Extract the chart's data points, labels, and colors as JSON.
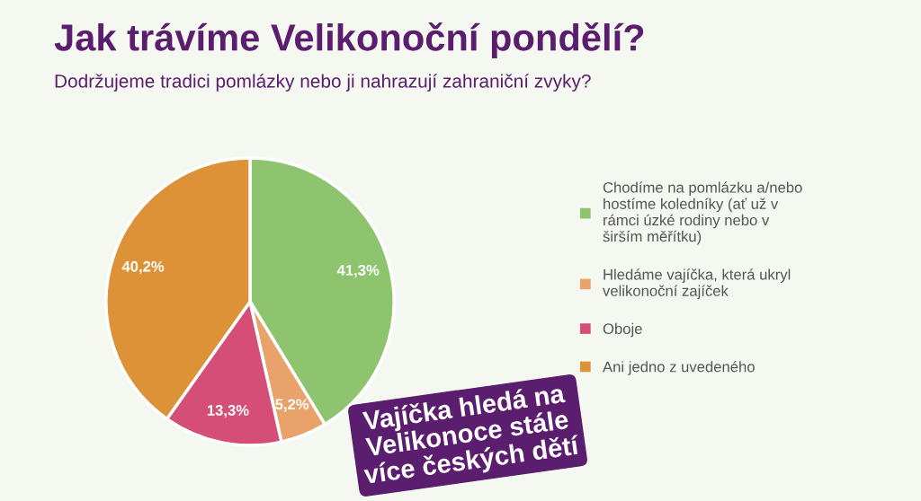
{
  "chart_data": {
    "type": "pie",
    "title": "Jak trávíme Velikonoční pondělí?",
    "subtitle": "Dodržujeme tradici pomlázky nebo ji nahrazují zahraniční zvyky?",
    "categories": [
      "Chodíme na pomlázku a/nebo hostíme koledníky (ať už v rámci úzké rodiny nebo v širším měřítku)",
      "Hledáme vajíčka, která ukryl velikonoční zajíček",
      "Oboje",
      "Ani jedno z uvedeného"
    ],
    "values": [
      41.3,
      5.2,
      13.3,
      40.2
    ],
    "colors": [
      "#8fc46e",
      "#e9a26a",
      "#d44e77",
      "#dd9237"
    ],
    "value_labels": [
      "41,3%",
      "5,2%",
      "13,3%",
      "40,2%"
    ],
    "legend": "right",
    "annotations": [
      "Vajíčka hledá na\nVelikonoce stále\nvíce českých dětí"
    ]
  }
}
